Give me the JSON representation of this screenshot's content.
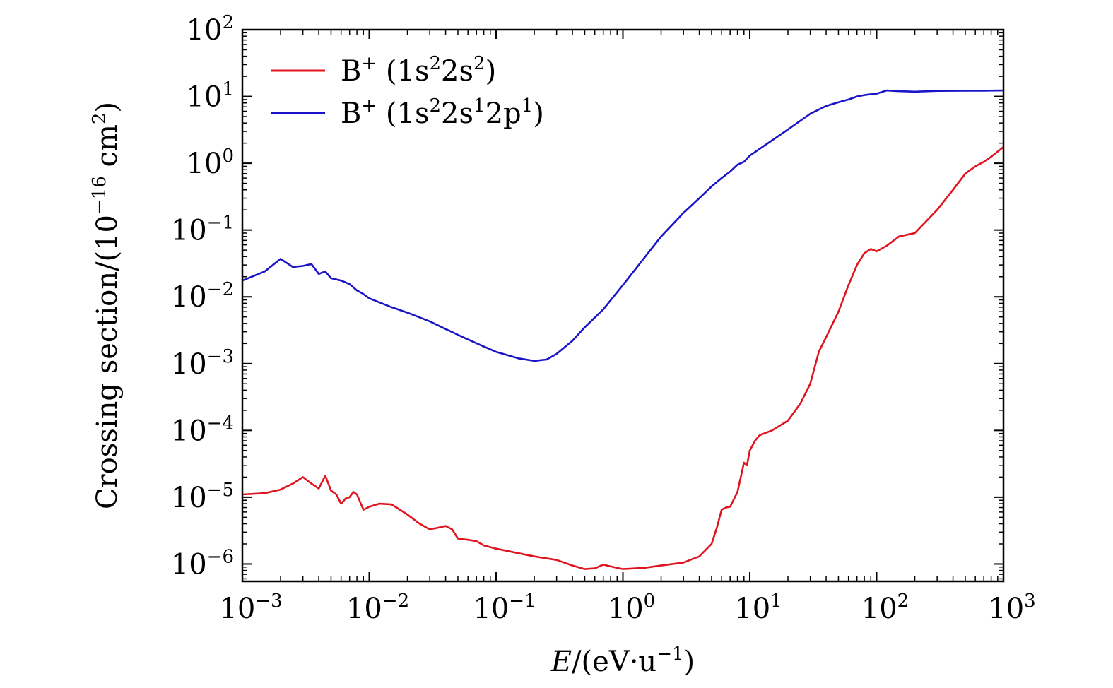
{
  "chart_data": {
    "type": "line",
    "xlabel": {
      "var": "E",
      "rest": "/(eV·u",
      "exp": "−1",
      "close": ")"
    },
    "ylabel": {
      "main": "Crossing section/(10",
      "exp": "−16",
      "unit": " cm",
      "unit_exp": "2",
      "close": ")"
    },
    "x_scale": "log",
    "y_scale": "log",
    "xlim": [
      0.001,
      1000
    ],
    "ylim": [
      5.5e-07,
      100
    ],
    "x_ticks": [
      {
        "value": 0.001,
        "base": "10",
        "exp": "−3"
      },
      {
        "value": 0.01,
        "base": "10",
        "exp": "−2"
      },
      {
        "value": 0.1,
        "base": "10",
        "exp": "−1"
      },
      {
        "value": 1,
        "base": "10",
        "exp": "0"
      },
      {
        "value": 10,
        "base": "10",
        "exp": "1"
      },
      {
        "value": 100,
        "base": "10",
        "exp": "2"
      },
      {
        "value": 1000,
        "base": "10",
        "exp": "3"
      }
    ],
    "y_ticks": [
      {
        "value": 1e-06,
        "base": "10",
        "exp": "−6"
      },
      {
        "value": 1e-05,
        "base": "10",
        "exp": "−5"
      },
      {
        "value": 0.0001,
        "base": "10",
        "exp": "−4"
      },
      {
        "value": 0.001,
        "base": "10",
        "exp": "−3"
      },
      {
        "value": 0.01,
        "base": "10",
        "exp": "−2"
      },
      {
        "value": 0.1,
        "base": "10",
        "exp": "−1"
      },
      {
        "value": 1,
        "base": "10",
        "exp": "0"
      },
      {
        "value": 10,
        "base": "10",
        "exp": "1"
      },
      {
        "value": 100,
        "base": "10",
        "exp": "2"
      }
    ],
    "legend_position": "top-left",
    "series": [
      {
        "name": "B+ (1s2 2s2)",
        "label_parts": [
          {
            "t": "B"
          },
          {
            "t": "+",
            "sup": true
          },
          {
            "t": " (1s"
          },
          {
            "t": "2",
            "sup": true
          },
          {
            "t": "2s"
          },
          {
            "t": "2",
            "sup": true
          },
          {
            "t": ")"
          }
        ],
        "color": "#e0141e",
        "points": [
          [
            0.001,
            1.1e-05
          ],
          [
            0.0015,
            1.15e-05
          ],
          [
            0.002,
            1.3e-05
          ],
          [
            0.0025,
            1.6e-05
          ],
          [
            0.003,
            2e-05
          ],
          [
            0.0035,
            1.6e-05
          ],
          [
            0.004,
            1.35e-05
          ],
          [
            0.0045,
            2.1e-05
          ],
          [
            0.005,
            1.25e-05
          ],
          [
            0.0055,
            1.1e-05
          ],
          [
            0.006,
            8e-06
          ],
          [
            0.0065,
            9.5e-06
          ],
          [
            0.007,
            1e-05
          ],
          [
            0.0075,
            1.2e-05
          ],
          [
            0.008,
            1.1e-05
          ],
          [
            0.009,
            6.5e-06
          ],
          [
            0.01,
            7.2e-06
          ],
          [
            0.012,
            8e-06
          ],
          [
            0.015,
            7.8e-06
          ],
          [
            0.02,
            5.5e-06
          ],
          [
            0.025,
            4e-06
          ],
          [
            0.03,
            3.3e-06
          ],
          [
            0.035,
            3.5e-06
          ],
          [
            0.04,
            3.7e-06
          ],
          [
            0.045,
            3.3e-06
          ],
          [
            0.05,
            2.4e-06
          ],
          [
            0.06,
            2.3e-06
          ],
          [
            0.07,
            2.2e-06
          ],
          [
            0.08,
            1.9e-06
          ],
          [
            0.1,
            1.7e-06
          ],
          [
            0.15,
            1.45e-06
          ],
          [
            0.2,
            1.3e-06
          ],
          [
            0.3,
            1.15e-06
          ],
          [
            0.4,
            9.5e-07
          ],
          [
            0.5,
            8.4e-07
          ],
          [
            0.6,
            8.6e-07
          ],
          [
            0.7,
            9.8e-07
          ],
          [
            0.8,
            9.2e-07
          ],
          [
            1.0,
            8.4e-07
          ],
          [
            1.5,
            8.8e-07
          ],
          [
            2.0,
            9.5e-07
          ],
          [
            3.0,
            1.05e-06
          ],
          [
            4.0,
            1.3e-06
          ],
          [
            5.0,
            2e-06
          ],
          [
            5.5,
            3.5e-06
          ],
          [
            6.0,
            6.5e-06
          ],
          [
            6.5,
            7e-06
          ],
          [
            7.0,
            7.2e-06
          ],
          [
            8.0,
            1.2e-05
          ],
          [
            9.0,
            3.3e-05
          ],
          [
            9.5,
            3e-05
          ],
          [
            10.0,
            5e-05
          ],
          [
            11.0,
            7e-05
          ],
          [
            12.0,
            8.5e-05
          ],
          [
            15.0,
            0.0001
          ],
          [
            20.0,
            0.00014
          ],
          [
            25.0,
            0.00025
          ],
          [
            30.0,
            0.0005
          ],
          [
            35.0,
            0.0015
          ],
          [
            40.0,
            0.0025
          ],
          [
            50.0,
            0.006
          ],
          [
            60.0,
            0.015
          ],
          [
            70.0,
            0.03
          ],
          [
            80.0,
            0.045
          ],
          [
            90.0,
            0.052
          ],
          [
            100.0,
            0.048
          ],
          [
            120.0,
            0.058
          ],
          [
            150.0,
            0.08
          ],
          [
            200.0,
            0.09
          ],
          [
            300.0,
            0.2
          ],
          [
            400.0,
            0.4
          ],
          [
            500.0,
            0.7
          ],
          [
            600.0,
            0.9
          ],
          [
            700.0,
            1.05
          ],
          [
            800.0,
            1.25
          ],
          [
            1000.0,
            1.75
          ]
        ]
      },
      {
        "name": "B+ (1s2 2s1 2p1)",
        "label_parts": [
          {
            "t": "B"
          },
          {
            "t": "+",
            "sup": true
          },
          {
            "t": " (1s"
          },
          {
            "t": "2",
            "sup": true
          },
          {
            "t": "2s"
          },
          {
            "t": "1",
            "sup": true
          },
          {
            "t": "2p"
          },
          {
            "t": "1",
            "sup": true
          },
          {
            "t": ")"
          }
        ],
        "color": "#1a14c8",
        "points": [
          [
            0.001,
            0.0175
          ],
          [
            0.0015,
            0.024
          ],
          [
            0.002,
            0.037
          ],
          [
            0.0025,
            0.028
          ],
          [
            0.003,
            0.029
          ],
          [
            0.0035,
            0.031
          ],
          [
            0.004,
            0.022
          ],
          [
            0.0045,
            0.024
          ],
          [
            0.005,
            0.019
          ],
          [
            0.006,
            0.0175
          ],
          [
            0.007,
            0.0155
          ],
          [
            0.008,
            0.0125
          ],
          [
            0.009,
            0.011
          ],
          [
            0.01,
            0.0095
          ],
          [
            0.015,
            0.007
          ],
          [
            0.02,
            0.0058
          ],
          [
            0.03,
            0.0043
          ],
          [
            0.04,
            0.0033
          ],
          [
            0.05,
            0.0027
          ],
          [
            0.06,
            0.0023
          ],
          [
            0.08,
            0.0018
          ],
          [
            0.1,
            0.0015
          ],
          [
            0.15,
            0.0012
          ],
          [
            0.2,
            0.0011
          ],
          [
            0.25,
            0.00115
          ],
          [
            0.3,
            0.0014
          ],
          [
            0.4,
            0.0022
          ],
          [
            0.5,
            0.0035
          ],
          [
            0.7,
            0.0065
          ],
          [
            1.0,
            0.015
          ],
          [
            1.5,
            0.04
          ],
          [
            2.0,
            0.08
          ],
          [
            3.0,
            0.18
          ],
          [
            4.0,
            0.3
          ],
          [
            5.0,
            0.45
          ],
          [
            6.0,
            0.6
          ],
          [
            7.0,
            0.75
          ],
          [
            8.0,
            0.95
          ],
          [
            9.0,
            1.05
          ],
          [
            10.0,
            1.3
          ],
          [
            15.0,
            2.2
          ],
          [
            20.0,
            3.2
          ],
          [
            30.0,
            5.5
          ],
          [
            40.0,
            7.2
          ],
          [
            50.0,
            8.2
          ],
          [
            60.0,
            9.0
          ],
          [
            70.0,
            10.0
          ],
          [
            80.0,
            10.5
          ],
          [
            100.0,
            11.0
          ],
          [
            120.0,
            12.3
          ],
          [
            150.0,
            12.0
          ],
          [
            200.0,
            11.8
          ],
          [
            300.0,
            12.1
          ],
          [
            500.0,
            12.2
          ],
          [
            700.0,
            12.2
          ],
          [
            1000.0,
            12.3
          ]
        ]
      }
    ]
  }
}
